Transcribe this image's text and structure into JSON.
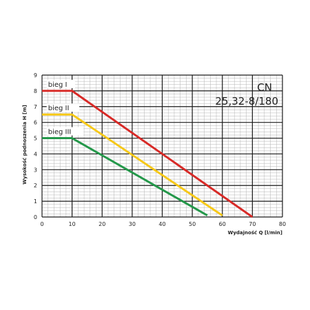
{
  "chart_data": {
    "type": "line",
    "title_line1": "CN",
    "title_line2": "25,32-8/180",
    "xlabel": "Wydajność Q [l/min]",
    "ylabel": "Wysokość podnoszenia H [m]",
    "xlim": [
      0,
      80
    ],
    "ylim": [
      0,
      9
    ],
    "x_ticks": [
      0,
      10,
      20,
      30,
      40,
      50,
      60,
      70,
      80
    ],
    "y_ticks": [
      0,
      1,
      2,
      3,
      4,
      5,
      6,
      7,
      8,
      9
    ],
    "grid": true,
    "colors": {
      "major_grid": "#1a1a1a",
      "minor_grid": "#b3b3b3",
      "background": "#ffffff"
    },
    "series": [
      {
        "name": "bieg I",
        "color": "#d82a27",
        "x": [
          0,
          10,
          70
        ],
        "y": [
          8,
          8,
          0
        ]
      },
      {
        "name": "bieg II",
        "color": "#f6c818",
        "x": [
          0,
          10,
          60
        ],
        "y": [
          6.5,
          6.5,
          0.1
        ]
      },
      {
        "name": "bieg III",
        "color": "#24984a",
        "x": [
          0,
          10,
          55
        ],
        "y": [
          5,
          5,
          0.1
        ]
      }
    ]
  }
}
